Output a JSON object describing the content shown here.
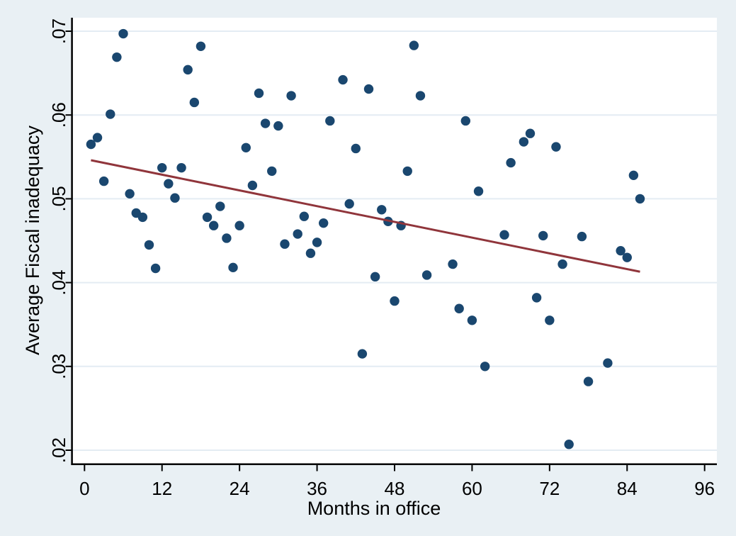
{
  "figure": {
    "background_color": "#e9f0f4",
    "plot_background_color": "#ffffff",
    "gridline_color": "#e4ecf3",
    "axis_color": "#000000",
    "tick_label_color": "#000000"
  },
  "chart_data": {
    "type": "scatter",
    "title": "",
    "xlabel": "Months in office",
    "ylabel": "Average Fiscal inadequacy",
    "xlim": [
      0,
      96
    ],
    "ylim": [
      0.02,
      0.07
    ],
    "grid": "horizontal",
    "legend": "none",
    "x_ticks": {
      "values": [
        0,
        12,
        24,
        36,
        48,
        60,
        72,
        84,
        96
      ],
      "labels": [
        "0",
        "12",
        "24",
        "36",
        "48",
        "60",
        "72",
        "84",
        "96"
      ]
    },
    "y_ticks": {
      "values": [
        0.02,
        0.03,
        0.04,
        0.05,
        0.06,
        0.07
      ],
      "labels": [
        ".02",
        ".03",
        ".04",
        ".05",
        ".06",
        ".07"
      ]
    },
    "scatter": {
      "marker": "circle",
      "color": "#1a476f",
      "points": [
        [
          1,
          0.0565
        ],
        [
          2,
          0.0573
        ],
        [
          3,
          0.0521
        ],
        [
          4,
          0.0601
        ],
        [
          5,
          0.0669
        ],
        [
          6,
          0.0697
        ],
        [
          7,
          0.0506
        ],
        [
          8,
          0.0483
        ],
        [
          9,
          0.0478
        ],
        [
          10,
          0.0445
        ],
        [
          11,
          0.0417
        ],
        [
          12,
          0.0537
        ],
        [
          13,
          0.0518
        ],
        [
          14,
          0.0501
        ],
        [
          15,
          0.0537
        ],
        [
          16,
          0.0654
        ],
        [
          17,
          0.0615
        ],
        [
          18,
          0.0682
        ],
        [
          19,
          0.0478
        ],
        [
          20,
          0.0468
        ],
        [
          21,
          0.0491
        ],
        [
          22,
          0.0453
        ],
        [
          23,
          0.0418
        ],
        [
          24,
          0.0468
        ],
        [
          25,
          0.0561
        ],
        [
          26,
          0.0516
        ],
        [
          27,
          0.0626
        ],
        [
          28,
          0.059
        ],
        [
          29,
          0.0533
        ],
        [
          30,
          0.0587
        ],
        [
          31,
          0.0446
        ],
        [
          32,
          0.0623
        ],
        [
          33,
          0.0458
        ],
        [
          34,
          0.0479
        ],
        [
          35,
          0.0435
        ],
        [
          36,
          0.0448
        ],
        [
          37,
          0.0471
        ],
        [
          38,
          0.0593
        ],
        [
          40,
          0.0642
        ],
        [
          41,
          0.0494
        ],
        [
          42,
          0.056
        ],
        [
          43,
          0.0315
        ],
        [
          44,
          0.0631
        ],
        [
          45,
          0.0407
        ],
        [
          46,
          0.0487
        ],
        [
          47,
          0.0473
        ],
        [
          48,
          0.0378
        ],
        [
          49,
          0.0468
        ],
        [
          50,
          0.0533
        ],
        [
          51,
          0.0683
        ],
        [
          52,
          0.0623
        ],
        [
          53,
          0.0409
        ],
        [
          57,
          0.0422
        ],
        [
          58,
          0.0369
        ],
        [
          59,
          0.0593
        ],
        [
          60,
          0.0355
        ],
        [
          61,
          0.0509
        ],
        [
          62,
          0.03
        ],
        [
          65,
          0.0457
        ],
        [
          66,
          0.0543
        ],
        [
          68,
          0.0568
        ],
        [
          69,
          0.0578
        ],
        [
          70,
          0.0382
        ],
        [
          71,
          0.0456
        ],
        [
          72,
          0.0355
        ],
        [
          73,
          0.0562
        ],
        [
          74,
          0.0422
        ],
        [
          75,
          0.0207
        ],
        [
          77,
          0.0455
        ],
        [
          78,
          0.0282
        ],
        [
          81,
          0.0304
        ],
        [
          83,
          0.0438
        ],
        [
          84,
          0.043
        ],
        [
          85,
          0.0528
        ],
        [
          86,
          0.05
        ]
      ]
    },
    "fit_line": {
      "color": "#90353b",
      "x1": 1,
      "y1": 0.0546,
      "x2": 86,
      "y2": 0.0413
    }
  }
}
